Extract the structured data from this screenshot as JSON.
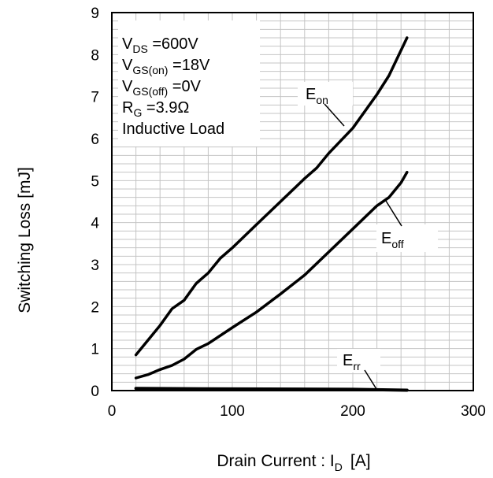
{
  "chart_data": {
    "type": "line",
    "xlabel": {
      "main": "Drain Current : I",
      "sub": "D",
      "unit": "[A]"
    },
    "ylabel": "Switching Loss   [mJ]",
    "xlim": [
      0,
      300
    ],
    "ylim": [
      0,
      9
    ],
    "x_ticks": [
      "0",
      "100",
      "200",
      "300"
    ],
    "y_ticks": [
      "0",
      "1",
      "2",
      "3",
      "4",
      "5",
      "6",
      "7",
      "8",
      "9"
    ],
    "grid": true,
    "conditions": [
      {
        "main": "V",
        "sub": "DS",
        "rest": " =600V"
      },
      {
        "main": "V",
        "sub": "GS(on)",
        "rest": " =18V"
      },
      {
        "main": "V",
        "sub": "GS(off)",
        "rest": " =0V"
      },
      {
        "main": "R",
        "sub": "G",
        "rest": " =3.9Ω"
      },
      {
        "main": "Inductive Load",
        "sub": "",
        "rest": ""
      }
    ],
    "series": [
      {
        "name": "E",
        "name_sub": "on",
        "x": [
          20,
          30,
          40,
          50,
          55,
          60,
          65,
          70,
          80,
          90,
          100,
          120,
          140,
          160,
          170,
          180,
          200,
          220,
          230,
          245
        ],
        "y": [
          0.85,
          1.2,
          1.55,
          1.95,
          2.05,
          2.15,
          2.35,
          2.55,
          2.8,
          3.15,
          3.4,
          3.95,
          4.5,
          5.05,
          5.3,
          5.65,
          6.25,
          7.05,
          7.5,
          8.4
        ]
      },
      {
        "name": "E",
        "name_sub": "off",
        "x": [
          20,
          30,
          40,
          50,
          60,
          70,
          80,
          100,
          120,
          140,
          160,
          180,
          200,
          220,
          230,
          240,
          245
        ],
        "y": [
          0.3,
          0.38,
          0.5,
          0.6,
          0.75,
          0.98,
          1.12,
          1.5,
          1.87,
          2.3,
          2.75,
          3.3,
          3.85,
          4.4,
          4.6,
          4.95,
          5.2
        ]
      },
      {
        "name": "E",
        "name_sub": "rr",
        "x": [
          20,
          100,
          200,
          245
        ],
        "y": [
          0.05,
          0.04,
          0.03,
          0.01
        ]
      }
    ]
  }
}
